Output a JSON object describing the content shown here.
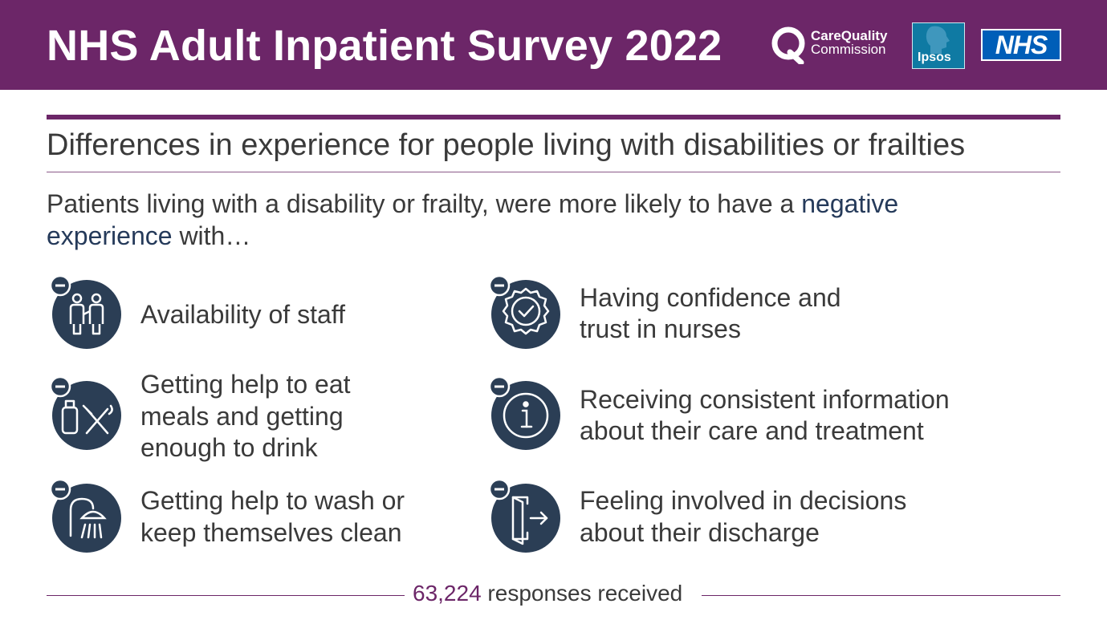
{
  "header": {
    "title": "NHS Adult Inpatient Survey 2022",
    "background_color": "#6c2668",
    "logos": {
      "cqc_line1": "CareQuality",
      "cqc_line2": "Commission",
      "ipsos": "Ipsos",
      "nhs": "NHS"
    }
  },
  "subtitle": "Differences in experience for people living with disabilities or frailties",
  "intro": {
    "text_plain": "Patients living with a disability or frailty, were more likely to have a ",
    "text_highlight": "negative",
    "text_line2_highlight": "experience",
    "text_end": " with…"
  },
  "items": [
    {
      "icon": "staff-icon",
      "line1": "Availability of staff",
      "line2": "",
      "line3": ""
    },
    {
      "icon": "meals-icon",
      "line1": "Getting help to eat",
      "line2": "meals and getting",
      "line3": "enough to drink"
    },
    {
      "icon": "shower-icon",
      "line1": "Getting help to wash or",
      "line2": "keep themselves clean",
      "line3": ""
    },
    {
      "icon": "badge-check-icon",
      "line1": "Having confidence and",
      "line2": "trust in nurses",
      "line3": ""
    },
    {
      "icon": "info-icon",
      "line1": "Receiving consistent information",
      "line2": "about their care and treatment",
      "line3": ""
    },
    {
      "icon": "exit-door-icon",
      "line1": "Feeling involved in decisions",
      "line2": "about their discharge",
      "line3": ""
    }
  ],
  "footer": {
    "count": "63,224",
    "text": " responses received"
  },
  "colors": {
    "purple": "#6c2668",
    "icon_navy": "#2b3e55",
    "text": "#3a3a3a",
    "highlight": "#253a5a"
  }
}
